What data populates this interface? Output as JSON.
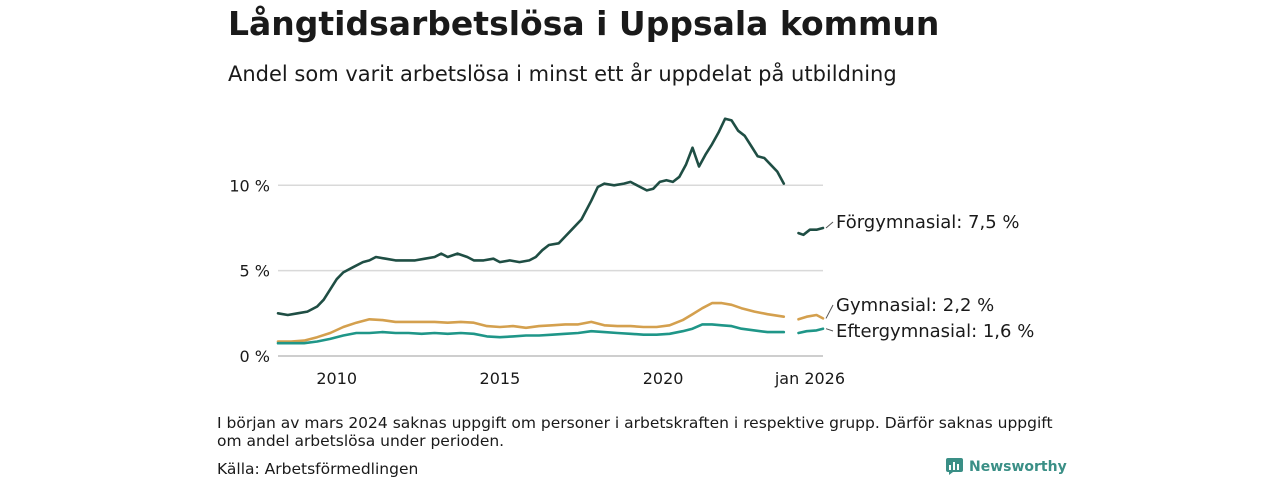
{
  "title": "Långtidsarbetslösa i Uppsala kommun",
  "subtitle": "Andel som varit arbetslösa i minst ett år uppdelat på utbildning",
  "note": "I början av mars 2024 saknas uppgift om personer i arbetskraften i respektive grupp. Därför saknas uppgift om andel arbetslösa under perioden.",
  "source": "Källa: Arbetsförmedlingen",
  "brand": "Newsworthy",
  "colors": {
    "forgymnasial": "#1f4e44",
    "gymnasial": "#d4a04e",
    "eftergymnasial": "#1f9688",
    "grid": "#d9d9d9",
    "brand": "#3a8f86"
  },
  "chart_data": {
    "type": "line",
    "title": "Långtidsarbetslösa i Uppsala kommun",
    "ylabel": "",
    "xlabel": "",
    "ylim": [
      0,
      14
    ],
    "xlim": [
      2008.2,
      2024.9
    ],
    "y_ticks": [
      {
        "value": 0,
        "label": "0 %"
      },
      {
        "value": 5,
        "label": "5 %"
      },
      {
        "value": 10,
        "label": "10 %"
      }
    ],
    "x_ticks": [
      {
        "value": 2010,
        "label": "2010"
      },
      {
        "value": 2015,
        "label": "2015"
      },
      {
        "value": 2020,
        "label": "2020"
      },
      {
        "value": 2024.5,
        "label": "jan 2026"
      }
    ],
    "gap": [
      2023.85,
      2024.15
    ],
    "series": [
      {
        "name": "Förgymnasial",
        "end_label": "Förgymnasial: 7,5 %",
        "color_key": "forgymnasial",
        "points": [
          [
            2008.2,
            2.5
          ],
          [
            2008.5,
            2.4
          ],
          [
            2008.8,
            2.5
          ],
          [
            2009.1,
            2.6
          ],
          [
            2009.4,
            2.9
          ],
          [
            2009.6,
            3.3
          ],
          [
            2009.8,
            3.9
          ],
          [
            2010.0,
            4.5
          ],
          [
            2010.2,
            4.9
          ],
          [
            2010.5,
            5.2
          ],
          [
            2010.8,
            5.5
          ],
          [
            2011.0,
            5.6
          ],
          [
            2011.2,
            5.8
          ],
          [
            2011.5,
            5.7
          ],
          [
            2011.8,
            5.6
          ],
          [
            2012.1,
            5.6
          ],
          [
            2012.4,
            5.6
          ],
          [
            2012.7,
            5.7
          ],
          [
            2013.0,
            5.8
          ],
          [
            2013.2,
            6.0
          ],
          [
            2013.4,
            5.8
          ],
          [
            2013.7,
            6.0
          ],
          [
            2014.0,
            5.8
          ],
          [
            2014.2,
            5.6
          ],
          [
            2014.5,
            5.6
          ],
          [
            2014.8,
            5.7
          ],
          [
            2015.0,
            5.5
          ],
          [
            2015.3,
            5.6
          ],
          [
            2015.6,
            5.5
          ],
          [
            2015.9,
            5.6
          ],
          [
            2016.1,
            5.8
          ],
          [
            2016.3,
            6.2
          ],
          [
            2016.5,
            6.5
          ],
          [
            2016.8,
            6.6
          ],
          [
            2017.0,
            7.0
          ],
          [
            2017.2,
            7.4
          ],
          [
            2017.5,
            8.0
          ],
          [
            2017.8,
            9.1
          ],
          [
            2018.0,
            9.9
          ],
          [
            2018.2,
            10.1
          ],
          [
            2018.5,
            10.0
          ],
          [
            2018.8,
            10.1
          ],
          [
            2019.0,
            10.2
          ],
          [
            2019.3,
            9.9
          ],
          [
            2019.5,
            9.7
          ],
          [
            2019.7,
            9.8
          ],
          [
            2019.9,
            10.2
          ],
          [
            2020.1,
            10.3
          ],
          [
            2020.3,
            10.2
          ],
          [
            2020.5,
            10.5
          ],
          [
            2020.7,
            11.2
          ],
          [
            2020.9,
            12.2
          ],
          [
            2021.1,
            11.1
          ],
          [
            2021.3,
            11.8
          ],
          [
            2021.5,
            12.4
          ],
          [
            2021.7,
            13.1
          ],
          [
            2021.9,
            13.9
          ],
          [
            2022.1,
            13.8
          ],
          [
            2022.3,
            13.2
          ],
          [
            2022.5,
            12.9
          ],
          [
            2022.7,
            12.3
          ],
          [
            2022.9,
            11.7
          ],
          [
            2023.1,
            11.6
          ],
          [
            2023.3,
            11.2
          ],
          [
            2023.5,
            10.8
          ],
          [
            2023.7,
            10.1
          ],
          [
            2024.15,
            7.2
          ],
          [
            2024.3,
            7.1
          ],
          [
            2024.5,
            7.4
          ],
          [
            2024.7,
            7.4
          ],
          [
            2024.9,
            7.5
          ]
        ]
      },
      {
        "name": "Gymnasial",
        "end_label": "Gymnasial: 2,2 %",
        "color_key": "gymnasial",
        "points": [
          [
            2008.2,
            0.85
          ],
          [
            2008.6,
            0.85
          ],
          [
            2009.0,
            0.9
          ],
          [
            2009.4,
            1.1
          ],
          [
            2009.8,
            1.35
          ],
          [
            2010.2,
            1.7
          ],
          [
            2010.6,
            1.95
          ],
          [
            2011.0,
            2.15
          ],
          [
            2011.4,
            2.1
          ],
          [
            2011.8,
            2.0
          ],
          [
            2012.2,
            2.0
          ],
          [
            2012.6,
            2.0
          ],
          [
            2013.0,
            2.0
          ],
          [
            2013.4,
            1.95
          ],
          [
            2013.8,
            2.0
          ],
          [
            2014.2,
            1.95
          ],
          [
            2014.6,
            1.75
          ],
          [
            2015.0,
            1.7
          ],
          [
            2015.4,
            1.75
          ],
          [
            2015.8,
            1.65
          ],
          [
            2016.2,
            1.75
          ],
          [
            2016.6,
            1.8
          ],
          [
            2017.0,
            1.85
          ],
          [
            2017.4,
            1.85
          ],
          [
            2017.8,
            2.0
          ],
          [
            2018.2,
            1.8
          ],
          [
            2018.6,
            1.75
          ],
          [
            2019.0,
            1.75
          ],
          [
            2019.4,
            1.7
          ],
          [
            2019.8,
            1.7
          ],
          [
            2020.2,
            1.8
          ],
          [
            2020.6,
            2.1
          ],
          [
            2020.9,
            2.45
          ],
          [
            2021.2,
            2.8
          ],
          [
            2021.5,
            3.1
          ],
          [
            2021.8,
            3.1
          ],
          [
            2022.1,
            3.0
          ],
          [
            2022.4,
            2.8
          ],
          [
            2022.8,
            2.6
          ],
          [
            2023.2,
            2.45
          ],
          [
            2023.7,
            2.3
          ],
          [
            2024.15,
            2.15
          ],
          [
            2024.4,
            2.3
          ],
          [
            2024.7,
            2.4
          ],
          [
            2024.9,
            2.2
          ]
        ]
      },
      {
        "name": "Eftergymnasial",
        "end_label": "Eftergymnasial: 1,6 %",
        "color_key": "eftergymnasial",
        "points": [
          [
            2008.2,
            0.75
          ],
          [
            2008.6,
            0.75
          ],
          [
            2009.0,
            0.75
          ],
          [
            2009.4,
            0.85
          ],
          [
            2009.8,
            1.0
          ],
          [
            2010.2,
            1.2
          ],
          [
            2010.6,
            1.35
          ],
          [
            2011.0,
            1.35
          ],
          [
            2011.4,
            1.4
          ],
          [
            2011.8,
            1.35
          ],
          [
            2012.2,
            1.35
          ],
          [
            2012.6,
            1.3
          ],
          [
            2013.0,
            1.35
          ],
          [
            2013.4,
            1.3
          ],
          [
            2013.8,
            1.35
          ],
          [
            2014.2,
            1.3
          ],
          [
            2014.6,
            1.15
          ],
          [
            2015.0,
            1.1
          ],
          [
            2015.4,
            1.15
          ],
          [
            2015.8,
            1.2
          ],
          [
            2016.2,
            1.2
          ],
          [
            2016.6,
            1.25
          ],
          [
            2017.0,
            1.3
          ],
          [
            2017.4,
            1.35
          ],
          [
            2017.8,
            1.45
          ],
          [
            2018.2,
            1.4
          ],
          [
            2018.6,
            1.35
          ],
          [
            2019.0,
            1.3
          ],
          [
            2019.4,
            1.25
          ],
          [
            2019.8,
            1.25
          ],
          [
            2020.2,
            1.3
          ],
          [
            2020.6,
            1.45
          ],
          [
            2020.9,
            1.6
          ],
          [
            2021.2,
            1.85
          ],
          [
            2021.5,
            1.85
          ],
          [
            2021.8,
            1.8
          ],
          [
            2022.1,
            1.75
          ],
          [
            2022.4,
            1.6
          ],
          [
            2022.8,
            1.5
          ],
          [
            2023.2,
            1.4
          ],
          [
            2023.7,
            1.4
          ],
          [
            2024.15,
            1.35
          ],
          [
            2024.4,
            1.45
          ],
          [
            2024.7,
            1.5
          ],
          [
            2024.9,
            1.6
          ]
        ]
      }
    ]
  }
}
